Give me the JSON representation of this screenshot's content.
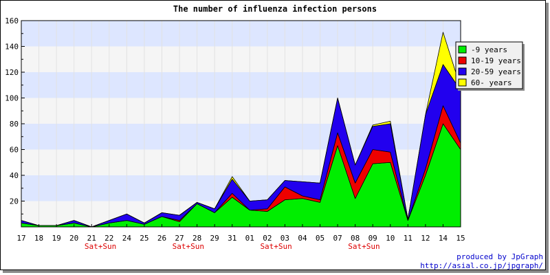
{
  "chart_data": {
    "type": "area",
    "stacked": true,
    "title": "The number of influenza infection persons",
    "xlabel": "",
    "ylabel": "",
    "ylim": [
      0,
      160
    ],
    "yticks": [
      20,
      40,
      60,
      80,
      100,
      120,
      140,
      160
    ],
    "categories": [
      "17",
      "18",
      "19",
      "20",
      "21",
      "22",
      "24",
      "25",
      "26",
      "27",
      "28",
      "29",
      "31",
      "01",
      "02",
      "03",
      "04",
      "05",
      "07",
      "08",
      "09",
      "10",
      "11",
      "12",
      "14",
      "15"
    ],
    "weekend_label": "Sat+Sun",
    "weekend_after": [
      "21",
      "27",
      "02",
      "08"
    ],
    "grid": true,
    "band_colors": [
      "#f5f5f5",
      "#dde6ff"
    ],
    "legend_position": "right",
    "series": [
      {
        "name": "-9 years",
        "color": "#00ee00",
        "values": [
          3,
          1,
          1,
          3,
          0,
          3,
          5,
          2,
          8,
          4,
          18,
          11,
          23,
          13,
          12,
          21,
          22,
          19,
          63,
          22,
          49,
          50,
          5,
          40,
          80,
          60
        ]
      },
      {
        "name": "10-19 years",
        "color": "#ee0000",
        "values": [
          0,
          0,
          0,
          0,
          0,
          0,
          0,
          0,
          0,
          1,
          0,
          0,
          3,
          0,
          2,
          10,
          2,
          2,
          10,
          12,
          11,
          8,
          0,
          5,
          14,
          5
        ]
      },
      {
        "name": "20-59 years",
        "color": "#2200ee",
        "values": [
          2,
          0,
          0,
          2,
          0,
          2,
          5,
          1,
          3,
          4,
          1,
          3,
          11,
          7,
          7,
          5,
          11,
          13,
          27,
          14,
          18,
          22,
          1,
          42,
          32,
          41
        ]
      },
      {
        "name": "60- years",
        "color": "#ffff00",
        "values": [
          0,
          0,
          0,
          0,
          0,
          0,
          0,
          0,
          0,
          0,
          0,
          0,
          2,
          0,
          0,
          0,
          0,
          0,
          0,
          0,
          1,
          2,
          0,
          0,
          25,
          2
        ]
      }
    ]
  },
  "credit": {
    "line1": "produced by JpGraph",
    "line2": "http://asial.co.jp/jpgraph/"
  }
}
